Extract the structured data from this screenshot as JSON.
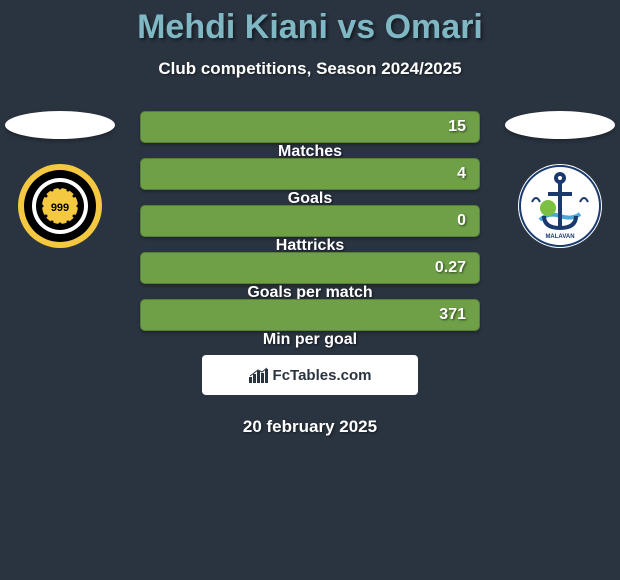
{
  "title": "Mehdi Kiani vs Omari",
  "subtitle": "Club competitions, Season 2024/2025",
  "date": "20 february 2025",
  "fctables_label": "FcTables.com",
  "stats_bar": {
    "background": "#6fa048",
    "border": "#578034"
  },
  "ellipse_color": "#ffffff",
  "background_color": "#2a3440",
  "title_color": "#7fb8c4",
  "left_club": {
    "outer_ring": "#f5c842",
    "inner_bg": "#000000",
    "center_bg": "#ffffff"
  },
  "right_club": {
    "bg": "#ffffff",
    "anchor_color": "#1a3a6e",
    "accent": "#4aa8d8"
  },
  "stats": [
    {
      "label": "Matches",
      "value": "15"
    },
    {
      "label": "Goals",
      "value": "4"
    },
    {
      "label": "Hattricks",
      "value": "0"
    },
    {
      "label": "Goals per match",
      "value": "0.27"
    },
    {
      "label": "Min per goal",
      "value": "371"
    }
  ]
}
